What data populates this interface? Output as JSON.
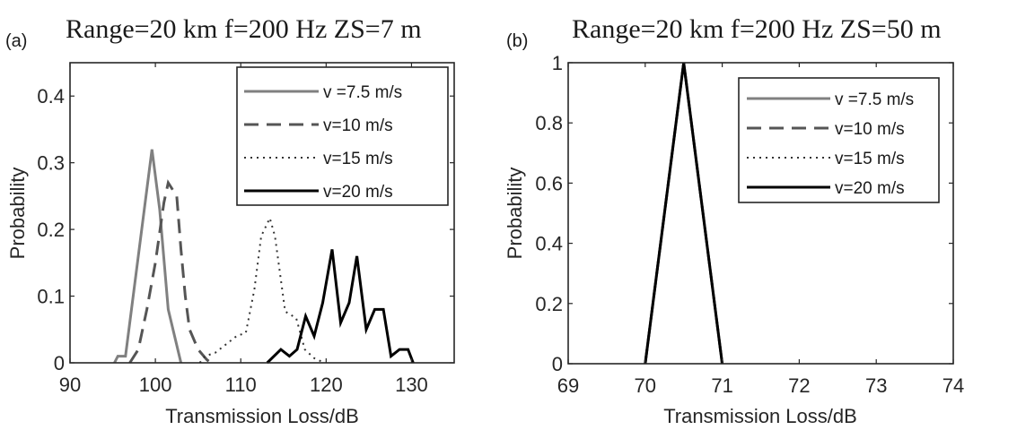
{
  "chart_data": [
    {
      "type": "line",
      "panel_label": "(a)",
      "title": "Range=20 km f=200 Hz ZS=7 m",
      "xlabel": "Transmission Loss/dB",
      "ylabel": "Probability",
      "xlim": [
        90,
        135
      ],
      "ylim": [
        0,
        0.45
      ],
      "xticks": [
        90,
        100,
        110,
        120,
        130
      ],
      "xtick_labels": [
        "90",
        "100",
        "110",
        "120",
        "130"
      ],
      "yticks": [
        0,
        0.1,
        0.2,
        0.3,
        0.4
      ],
      "ytick_labels": [
        "0",
        "0.1",
        "0.2",
        "0.3",
        "0.4"
      ],
      "grid": false,
      "legend_position": "top-right",
      "series": [
        {
          "name": "v =7.5 m/s",
          "color": "#808080",
          "style": "solid",
          "x": [
            95.2,
            95.6,
            96.5,
            99.6,
            100.5,
            101.5,
            103.0
          ],
          "y": [
            0,
            0.01,
            0.01,
            0.32,
            0.23,
            0.08,
            0
          ]
        },
        {
          "name": "v=10 m/s",
          "color": "#555555",
          "style": "dashed",
          "x": [
            97.0,
            98.0,
            99.0,
            100.0,
            101.0,
            101.5,
            102.5,
            103.0,
            103.5,
            104.0,
            105.0,
            106.0,
            106.5
          ],
          "y": [
            0,
            0.02,
            0.08,
            0.15,
            0.24,
            0.27,
            0.25,
            0.17,
            0.1,
            0.05,
            0.02,
            0.005,
            0
          ]
        },
        {
          "name": "v=15 m/s",
          "color": "#333333",
          "style": "dotted",
          "x": [
            105.2,
            105.8,
            107.0,
            108.5,
            109.5,
            110.6,
            111.6,
            112.4,
            113.4,
            114.0,
            115.2,
            116.5,
            117.5,
            118.6,
            119.8
          ],
          "y": [
            0,
            0.01,
            0.015,
            0.03,
            0.04,
            0.045,
            0.11,
            0.19,
            0.217,
            0.19,
            0.077,
            0.067,
            0.02,
            0.007,
            0
          ]
        },
        {
          "name": "v=20 m/s",
          "color": "#000000",
          "style": "solid",
          "x": [
            113.1,
            114.7,
            115.7,
            116.6,
            117.6,
            118.6,
            119.6,
            120.7,
            121.7,
            122.7,
            123.6,
            124.7,
            125.7,
            126.7,
            127.6,
            128.6,
            129.6,
            130.2
          ],
          "y": [
            0,
            0.02,
            0.01,
            0.02,
            0.07,
            0.04,
            0.09,
            0.17,
            0.06,
            0.09,
            0.16,
            0.05,
            0.08,
            0.08,
            0.01,
            0.02,
            0.02,
            0
          ]
        }
      ]
    },
    {
      "type": "line",
      "panel_label": "(b)",
      "title": "Range=20 km f=200 Hz ZS=50 m",
      "xlabel": "Transmission Loss/dB",
      "ylabel": "Probability",
      "xlim": [
        69,
        74
      ],
      "ylim": [
        0,
        1
      ],
      "xticks": [
        69,
        70,
        71,
        72,
        73,
        74
      ],
      "xtick_labels": [
        "69",
        "70",
        "71",
        "72",
        "73",
        "74"
      ],
      "yticks": [
        0,
        0.2,
        0.4,
        0.6,
        0.8,
        1
      ],
      "ytick_labels": [
        "0",
        "0.2",
        "0.4",
        "0.6",
        "0.8",
        "1"
      ],
      "grid": false,
      "legend_position": "top-right",
      "series": [
        {
          "name": "v =7.5 m/s",
          "color": "#808080",
          "style": "solid",
          "x": [
            70,
            70.5,
            71
          ],
          "y": [
            0,
            1,
            0
          ]
        },
        {
          "name": "v=10 m/s",
          "color": "#555555",
          "style": "dashed",
          "x": [
            70,
            70.5,
            71
          ],
          "y": [
            0,
            1,
            0
          ]
        },
        {
          "name": "v=15 m/s",
          "color": "#333333",
          "style": "dotted",
          "x": [
            70,
            70.5,
            71
          ],
          "y": [
            0,
            1,
            0
          ]
        },
        {
          "name": "v=20 m/s",
          "color": "#000000",
          "style": "solid",
          "x": [
            70,
            70.5,
            71
          ],
          "y": [
            0,
            1,
            0
          ]
        }
      ]
    }
  ]
}
